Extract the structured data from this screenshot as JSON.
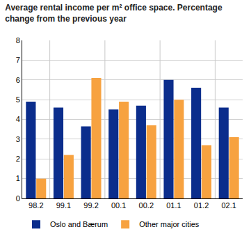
{
  "chart_data": {
    "type": "bar",
    "title": "Average rental income per m² office space. Percentage change from the previous year",
    "categories": [
      "98.2",
      "99.1",
      "99.2",
      "00.1",
      "00.2",
      "01.1",
      "01.2",
      "02.1"
    ],
    "series": [
      {
        "name": "Oslo and Bærum",
        "color": "#0b2d8c",
        "values": [
          4.9,
          4.6,
          3.65,
          4.5,
          4.7,
          6.0,
          5.6,
          4.6
        ]
      },
      {
        "name": "Other major cities",
        "color": "#f7a240",
        "values": [
          1.0,
          2.2,
          6.1,
          4.9,
          3.7,
          5.0,
          2.7,
          3.1
        ]
      }
    ],
    "ylim": [
      0,
      8
    ],
    "yticks": [
      0,
      1,
      2,
      3,
      4,
      5,
      6,
      7,
      8
    ],
    "grid": true,
    "legend": "bottom"
  }
}
